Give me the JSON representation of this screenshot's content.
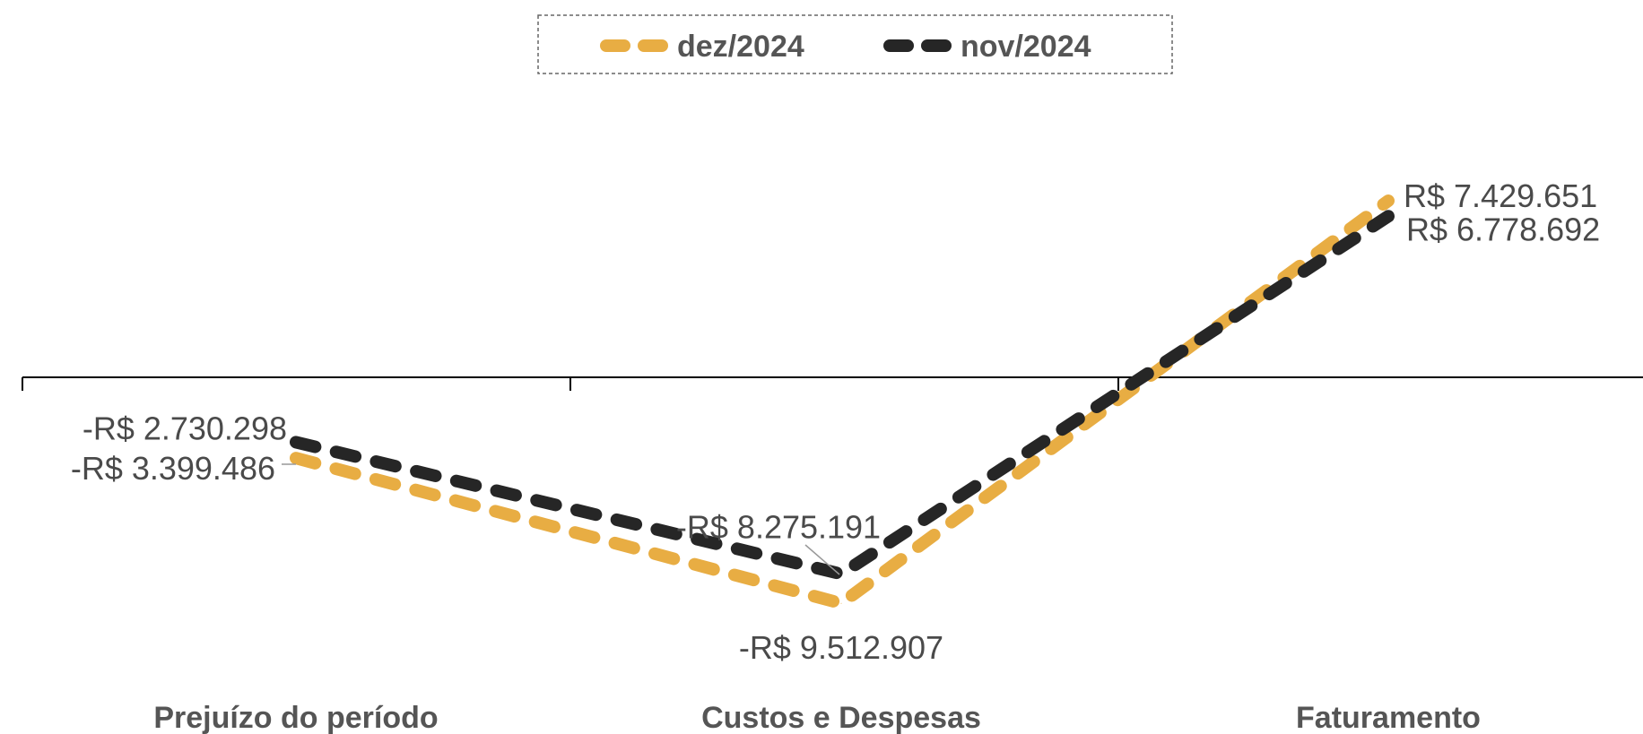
{
  "chart_data": {
    "type": "line",
    "title": "",
    "xlabel": "",
    "ylabel": "",
    "categories": [
      "Prejuízo do período",
      "Custos e Despesas",
      "Faturamento"
    ],
    "series": [
      {
        "name": "dez/2024",
        "values": [
          -3399486,
          -9512907,
          7429651
        ],
        "labels": [
          "-R$ 3.399.486",
          "-R$ 9.512.907",
          "R$ 7.429.651"
        ],
        "color": "#E8AD43",
        "line_style": "dashed"
      },
      {
        "name": "nov/2024",
        "values": [
          -2730298,
          -8275191,
          6778692
        ],
        "labels": [
          "-R$ 2.730.298",
          "-R$ 8.275.191",
          "R$ 6.778.692"
        ],
        "color": "#262626",
        "line_style": "dashed"
      }
    ],
    "ylim": [
      -12000000,
      12000000
    ],
    "grid": false,
    "legend": {
      "position": "top-center"
    }
  }
}
